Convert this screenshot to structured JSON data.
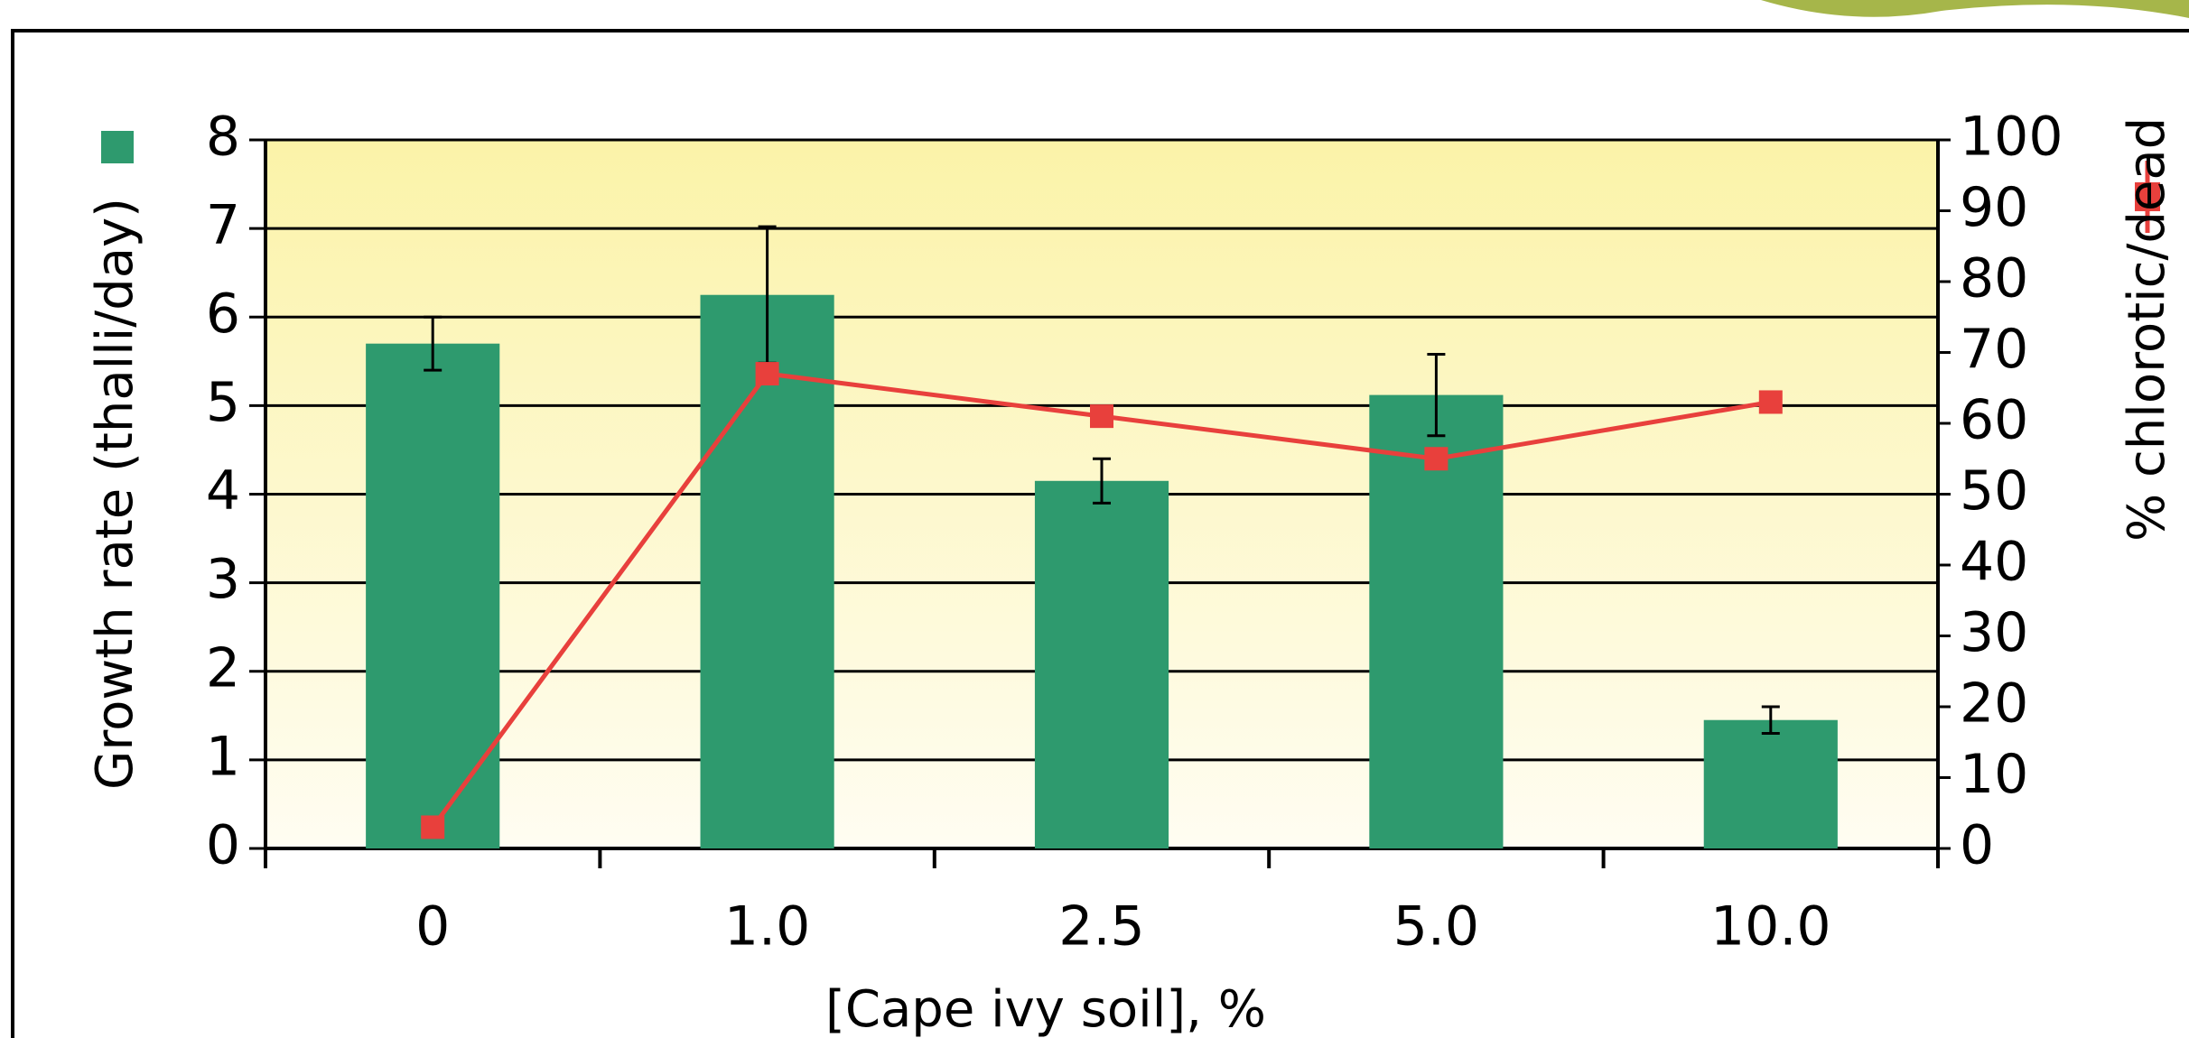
{
  "chart_data": {
    "type": "bar",
    "categories": [
      "0",
      "1.0",
      "2.5",
      "5.0",
      "10.0"
    ],
    "x_label": "[Cape ivy soil], %",
    "y_label": "Growth rate (thalli/day)",
    "y2_label": "% chlorotic/dead",
    "ylim": [
      0,
      8
    ],
    "yticks": [
      0,
      1,
      2,
      3,
      4,
      5,
      6,
      7,
      8
    ],
    "y2lim": [
      0,
      100
    ],
    "y2ticks": [
      0,
      10,
      20,
      30,
      40,
      50,
      60,
      70,
      80,
      90,
      100
    ],
    "grid": true,
    "series": [
      {
        "type": "bar",
        "color": "#2e9a6e",
        "values": [
          5.7,
          6.25,
          4.15,
          5.12,
          1.45
        ],
        "errors": [
          0.3,
          0.77,
          0.25,
          0.46,
          0.15
        ]
      },
      {
        "type": "line",
        "axis": "y2",
        "color": "#e8403c",
        "values": [
          3,
          67,
          61,
          55,
          63
        ]
      }
    ]
  }
}
